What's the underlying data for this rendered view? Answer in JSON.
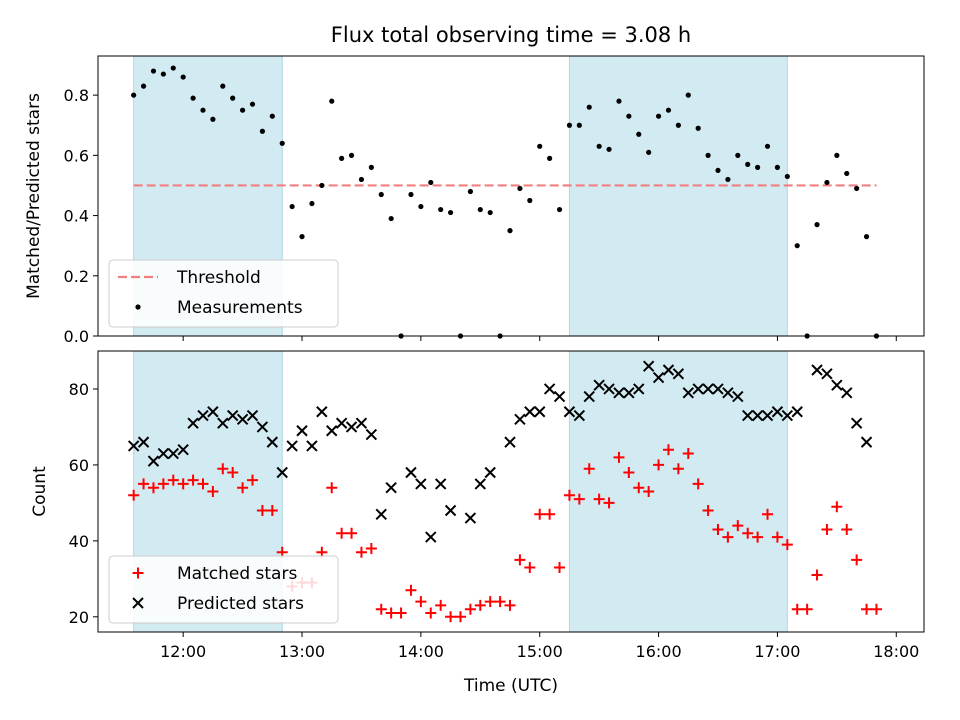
{
  "title": "Flux total observing time = 3.08 h",
  "colors": {
    "shade": "#add8e6",
    "threshold": "#f08080",
    "measurement": "#000000",
    "matched": "#ff0000",
    "predicted": "#000000"
  },
  "chart_data": [
    {
      "type": "scatter",
      "ylabel": "Matched/Predicted stars",
      "ylim": [
        0,
        0.93
      ],
      "yticks": [
        "0.0",
        "0.2",
        "0.4",
        "0.6",
        "0.8"
      ],
      "xlim": [
        "11:17",
        "18:14"
      ],
      "shaded_intervals": [
        [
          "11:35",
          "12:50"
        ],
        [
          "15:15",
          "17:05"
        ]
      ],
      "legend_position": "lower left",
      "threshold": {
        "name": "Threshold",
        "value": 0.5,
        "x_range": [
          "11:35",
          "17:50"
        ]
      },
      "series": [
        {
          "name": "Measurements",
          "points": [
            [
              "11:35",
              0.8
            ],
            [
              "11:40",
              0.83
            ],
            [
              "11:45",
              0.88
            ],
            [
              "11:50",
              0.87
            ],
            [
              "11:55",
              0.89
            ],
            [
              "12:00",
              0.86
            ],
            [
              "12:05",
              0.79
            ],
            [
              "12:10",
              0.75
            ],
            [
              "12:15",
              0.72
            ],
            [
              "12:20",
              0.83
            ],
            [
              "12:25",
              0.79
            ],
            [
              "12:30",
              0.75
            ],
            [
              "12:35",
              0.77
            ],
            [
              "12:40",
              0.68
            ],
            [
              "12:45",
              0.73
            ],
            [
              "12:50",
              0.64
            ],
            [
              "12:55",
              0.43
            ],
            [
              "13:00",
              0.33
            ],
            [
              "13:05",
              0.44
            ],
            [
              "13:10",
              0.5
            ],
            [
              "13:15",
              0.78
            ],
            [
              "13:20",
              0.59
            ],
            [
              "13:25",
              0.6
            ],
            [
              "13:30",
              0.52
            ],
            [
              "13:35",
              0.56
            ],
            [
              "13:40",
              0.47
            ],
            [
              "13:45",
              0.39
            ],
            [
              "13:50",
              0.0
            ],
            [
              "13:55",
              0.47
            ],
            [
              "14:00",
              0.43
            ],
            [
              "14:05",
              0.51
            ],
            [
              "14:10",
              0.42
            ],
            [
              "14:15",
              0.41
            ],
            [
              "14:20",
              0.0
            ],
            [
              "14:25",
              0.48
            ],
            [
              "14:30",
              0.42
            ],
            [
              "14:35",
              0.41
            ],
            [
              "14:40",
              0.0
            ],
            [
              "14:45",
              0.35
            ],
            [
              "14:50",
              0.49
            ],
            [
              "14:55",
              0.45
            ],
            [
              "15:00",
              0.63
            ],
            [
              "15:05",
              0.59
            ],
            [
              "15:10",
              0.42
            ],
            [
              "15:15",
              0.7
            ],
            [
              "15:20",
              0.7
            ],
            [
              "15:25",
              0.76
            ],
            [
              "15:30",
              0.63
            ],
            [
              "15:35",
              0.62
            ],
            [
              "15:40",
              0.78
            ],
            [
              "15:45",
              0.73
            ],
            [
              "15:50",
              0.67
            ],
            [
              "15:55",
              0.61
            ],
            [
              "16:00",
              0.73
            ],
            [
              "16:05",
              0.75
            ],
            [
              "16:10",
              0.7
            ],
            [
              "16:15",
              0.8
            ],
            [
              "16:20",
              0.69
            ],
            [
              "16:25",
              0.6
            ],
            [
              "16:30",
              0.55
            ],
            [
              "16:35",
              0.52
            ],
            [
              "16:40",
              0.6
            ],
            [
              "16:45",
              0.57
            ],
            [
              "16:50",
              0.56
            ],
            [
              "16:55",
              0.63
            ],
            [
              "17:00",
              0.56
            ],
            [
              "17:05",
              0.53
            ],
            [
              "17:10",
              0.3
            ],
            [
              "17:15",
              0.0
            ],
            [
              "17:20",
              0.37
            ],
            [
              "17:25",
              0.51
            ],
            [
              "17:30",
              0.6
            ],
            [
              "17:35",
              0.54
            ],
            [
              "17:40",
              0.49
            ],
            [
              "17:45",
              0.33
            ],
            [
              "17:50",
              0.0
            ]
          ]
        }
      ]
    },
    {
      "type": "scatter",
      "ylabel": "Count",
      "xlabel": "Time (UTC)",
      "ylim": [
        16,
        90
      ],
      "yticks": [
        "20",
        "40",
        "60",
        "80"
      ],
      "xlim": [
        "11:17",
        "18:14"
      ],
      "xticks": [
        "12:00",
        "13:00",
        "14:00",
        "15:00",
        "16:00",
        "17:00",
        "18:00"
      ],
      "shaded_intervals": [
        [
          "11:35",
          "12:50"
        ],
        [
          "15:15",
          "17:05"
        ]
      ],
      "legend_position": "lower left",
      "series": [
        {
          "name": "Matched stars",
          "marker": "+",
          "points": [
            [
              "11:35",
              52
            ],
            [
              "11:40",
              55
            ],
            [
              "11:45",
              54
            ],
            [
              "11:50",
              55
            ],
            [
              "11:55",
              56
            ],
            [
              "12:00",
              55
            ],
            [
              "12:05",
              56
            ],
            [
              "12:10",
              55
            ],
            [
              "12:15",
              53
            ],
            [
              "12:20",
              59
            ],
            [
              "12:25",
              58
            ],
            [
              "12:30",
              54
            ],
            [
              "12:35",
              56
            ],
            [
              "12:40",
              48
            ],
            [
              "12:45",
              48
            ],
            [
              "12:50",
              37
            ],
            [
              "12:55",
              28
            ],
            [
              "13:00",
              29
            ],
            [
              "13:05",
              29
            ],
            [
              "13:10",
              37
            ],
            [
              "13:15",
              54
            ],
            [
              "13:20",
              42
            ],
            [
              "13:25",
              42
            ],
            [
              "13:30",
              37
            ],
            [
              "13:35",
              38
            ],
            [
              "13:40",
              22
            ],
            [
              "13:45",
              21
            ],
            [
              "13:50",
              21
            ],
            [
              "13:55",
              27
            ],
            [
              "14:00",
              24
            ],
            [
              "14:05",
              21
            ],
            [
              "14:10",
              23
            ],
            [
              "14:15",
              20
            ],
            [
              "14:20",
              20
            ],
            [
              "14:25",
              22
            ],
            [
              "14:30",
              23
            ],
            [
              "14:35",
              24
            ],
            [
              "14:40",
              24
            ],
            [
              "14:45",
              23
            ],
            [
              "14:50",
              35
            ],
            [
              "14:55",
              33
            ],
            [
              "15:00",
              47
            ],
            [
              "15:05",
              47
            ],
            [
              "15:10",
              33
            ],
            [
              "15:15",
              52
            ],
            [
              "15:20",
              51
            ],
            [
              "15:25",
              59
            ],
            [
              "15:30",
              51
            ],
            [
              "15:35",
              50
            ],
            [
              "15:40",
              62
            ],
            [
              "15:45",
              58
            ],
            [
              "15:50",
              54
            ],
            [
              "15:55",
              53
            ],
            [
              "16:00",
              60
            ],
            [
              "16:05",
              64
            ],
            [
              "16:10",
              59
            ],
            [
              "16:15",
              63
            ],
            [
              "16:20",
              55
            ],
            [
              "16:25",
              48
            ],
            [
              "16:30",
              43
            ],
            [
              "16:35",
              41
            ],
            [
              "16:40",
              44
            ],
            [
              "16:45",
              42
            ],
            [
              "16:50",
              41
            ],
            [
              "16:55",
              47
            ],
            [
              "17:00",
              41
            ],
            [
              "17:05",
              39
            ],
            [
              "17:10",
              22
            ],
            [
              "17:15",
              22
            ],
            [
              "17:20",
              31
            ],
            [
              "17:25",
              43
            ],
            [
              "17:30",
              49
            ],
            [
              "17:35",
              43
            ],
            [
              "17:40",
              35
            ],
            [
              "17:45",
              22
            ],
            [
              "17:50",
              22
            ]
          ]
        },
        {
          "name": "Predicted stars",
          "marker": "x",
          "points": [
            [
              "11:35",
              65
            ],
            [
              "11:40",
              66
            ],
            [
              "11:45",
              61
            ],
            [
              "11:50",
              63
            ],
            [
              "11:55",
              63
            ],
            [
              "12:00",
              64
            ],
            [
              "12:05",
              71
            ],
            [
              "12:10",
              73
            ],
            [
              "12:15",
              74
            ],
            [
              "12:20",
              71
            ],
            [
              "12:25",
              73
            ],
            [
              "12:30",
              72
            ],
            [
              "12:35",
              73
            ],
            [
              "12:40",
              70
            ],
            [
              "12:45",
              66
            ],
            [
              "12:50",
              58
            ],
            [
              "12:55",
              65
            ],
            [
              "13:00",
              69
            ],
            [
              "13:05",
              65
            ],
            [
              "13:10",
              74
            ],
            [
              "13:15",
              69
            ],
            [
              "13:20",
              71
            ],
            [
              "13:25",
              70
            ],
            [
              "13:30",
              71
            ],
            [
              "13:35",
              68
            ],
            [
              "13:40",
              47
            ],
            [
              "13:45",
              54
            ],
            [
              "13:55",
              58
            ],
            [
              "14:00",
              55
            ],
            [
              "14:05",
              41
            ],
            [
              "14:10",
              55
            ],
            [
              "14:15",
              48
            ],
            [
              "14:25",
              46
            ],
            [
              "14:30",
              55
            ],
            [
              "14:35",
              58
            ],
            [
              "14:45",
              66
            ],
            [
              "14:50",
              72
            ],
            [
              "14:55",
              74
            ],
            [
              "15:00",
              74
            ],
            [
              "15:05",
              80
            ],
            [
              "15:10",
              78
            ],
            [
              "15:15",
              74
            ],
            [
              "15:20",
              73
            ],
            [
              "15:25",
              78
            ],
            [
              "15:30",
              81
            ],
            [
              "15:35",
              80
            ],
            [
              "15:40",
              79
            ],
            [
              "15:45",
              79
            ],
            [
              "15:50",
              80
            ],
            [
              "15:55",
              86
            ],
            [
              "16:00",
              83
            ],
            [
              "16:05",
              85
            ],
            [
              "16:10",
              84
            ],
            [
              "16:15",
              79
            ],
            [
              "16:20",
              80
            ],
            [
              "16:25",
              80
            ],
            [
              "16:30",
              80
            ],
            [
              "16:35",
              79
            ],
            [
              "16:40",
              78
            ],
            [
              "16:45",
              73
            ],
            [
              "16:50",
              73
            ],
            [
              "16:55",
              73
            ],
            [
              "17:00",
              74
            ],
            [
              "17:05",
              73
            ],
            [
              "17:10",
              74
            ],
            [
              "17:20",
              85
            ],
            [
              "17:25",
              84
            ],
            [
              "17:30",
              81
            ],
            [
              "17:35",
              79
            ],
            [
              "17:40",
              71
            ],
            [
              "17:45",
              66
            ]
          ]
        }
      ]
    }
  ]
}
